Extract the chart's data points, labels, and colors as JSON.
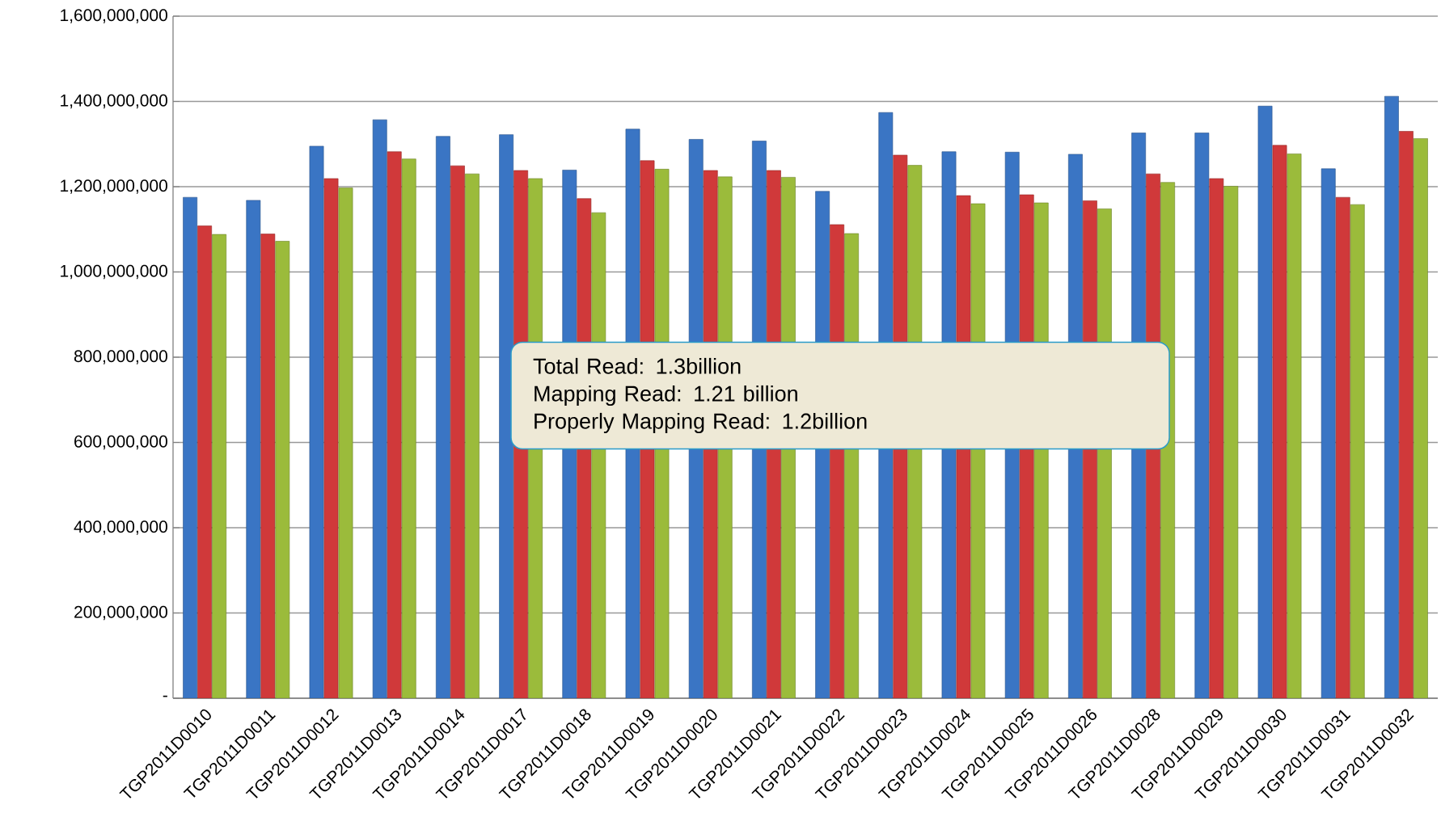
{
  "chart_data": {
    "type": "bar",
    "categories": [
      "TGP2011D0010",
      "TGP2011D0011",
      "TGP2011D0012",
      "TGP2011D0013",
      "TGP2011D0014",
      "TGP2011D0017",
      "TGP2011D0018",
      "TGP2011D0019",
      "TGP2011D0020",
      "TGP2011D0021",
      "TGP2011D0022",
      "TGP2011D0023",
      "TGP2011D0024",
      "TGP2011D0025",
      "TGP2011D0026",
      "TGP2011D0028",
      "TGP2011D0029",
      "TGP2011D0030",
      "TGP2011D0031",
      "TGP2011D0032"
    ],
    "series": [
      {
        "color": "#3a75c4",
        "values": [
          1175000000,
          1168000000,
          1295000000,
          1357000000,
          1318000000,
          1322000000,
          1239000000,
          1335000000,
          1311000000,
          1307000000,
          1189000000,
          1374000000,
          1282000000,
          1281000000,
          1276000000,
          1326000000,
          1326000000,
          1389000000,
          1242000000,
          1412000000
        ]
      },
      {
        "color": "#d0393a",
        "values": [
          1108000000,
          1089000000,
          1219000000,
          1282000000,
          1249000000,
          1238000000,
          1172000000,
          1261000000,
          1238000000,
          1238000000,
          1111000000,
          1274000000,
          1179000000,
          1181000000,
          1167000000,
          1230000000,
          1219000000,
          1297000000,
          1175000000,
          1330000000
        ]
      },
      {
        "color": "#9bbb3b",
        "values": [
          1088000000,
          1072000000,
          1197000000,
          1265000000,
          1230000000,
          1219000000,
          1139000000,
          1241000000,
          1223000000,
          1222000000,
          1090000000,
          1250000000,
          1160000000,
          1162000000,
          1148000000,
          1210000000,
          1201000000,
          1277000000,
          1158000000,
          1313000000
        ]
      }
    ],
    "ylim": [
      0,
      1600000000
    ],
    "yticks": [
      {
        "value": 0,
        "label": "-"
      },
      {
        "value": 200000000,
        "label": "200,000,000"
      },
      {
        "value": 400000000,
        "label": "400,000,000"
      },
      {
        "value": 600000000,
        "label": "600,000,000"
      },
      {
        "value": 800000000,
        "label": "800,000,000"
      },
      {
        "value": 1000000000,
        "label": "1,000,000,000"
      },
      {
        "value": 1200000000,
        "label": "1,200,000,000"
      },
      {
        "value": 1400000000,
        "label": "1,400,000,000"
      },
      {
        "value": 1600000000,
        "label": "1,600,000,000"
      }
    ],
    "grid": "y",
    "annotations": [
      "Total Read: 1.3billion",
      "Mapping Read: 1.21 billion",
      "Properly Mapping Read: 1.2billion"
    ]
  }
}
